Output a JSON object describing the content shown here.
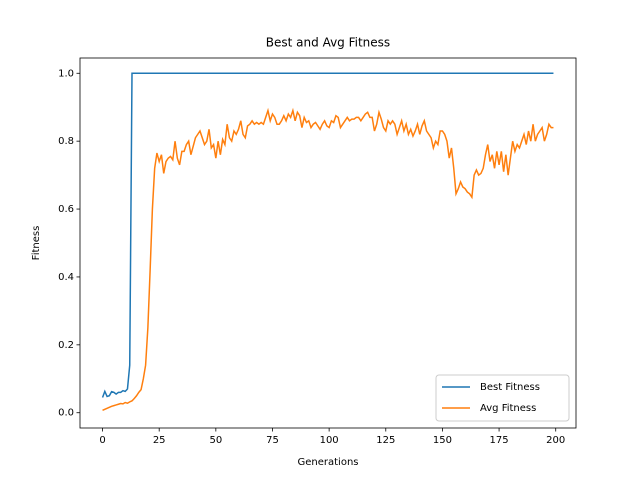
{
  "chart_data": {
    "type": "line",
    "title": "Best and Avg Fitness",
    "x_label": "Generations",
    "y_label": "Fitness",
    "x": [
      0,
      1,
      2,
      3,
      4,
      5,
      6,
      7,
      8,
      9,
      10,
      11,
      12,
      13,
      14,
      15,
      16,
      17,
      18,
      19,
      20,
      21,
      22,
      23,
      24,
      25,
      26,
      27,
      28,
      29,
      30,
      31,
      32,
      33,
      34,
      35,
      36,
      37,
      38,
      39,
      40,
      41,
      42,
      43,
      44,
      45,
      46,
      47,
      48,
      49,
      50,
      51,
      52,
      53,
      54,
      55,
      56,
      57,
      58,
      59,
      60,
      61,
      62,
      63,
      64,
      65,
      66,
      67,
      68,
      69,
      70,
      71,
      72,
      73,
      74,
      75,
      76,
      77,
      78,
      79,
      80,
      81,
      82,
      83,
      84,
      85,
      86,
      87,
      88,
      89,
      90,
      91,
      92,
      93,
      94,
      95,
      96,
      97,
      98,
      99,
      100,
      101,
      102,
      103,
      104,
      105,
      106,
      107,
      108,
      109,
      110,
      111,
      112,
      113,
      114,
      115,
      116,
      117,
      118,
      119,
      120,
      121,
      122,
      123,
      124,
      125,
      126,
      127,
      128,
      129,
      130,
      131,
      132,
      133,
      134,
      135,
      136,
      137,
      138,
      139,
      140,
      141,
      142,
      143,
      144,
      145,
      146,
      147,
      148,
      149,
      150,
      151,
      152,
      153,
      154,
      155,
      156,
      157,
      158,
      159,
      160,
      161,
      162,
      163,
      164,
      165,
      166,
      167,
      168,
      169,
      170,
      171,
      172,
      173,
      174,
      175,
      176,
      177,
      178,
      179,
      180,
      181,
      182,
      183,
      184,
      185,
      186,
      187,
      188,
      189,
      190,
      191,
      192,
      193,
      194,
      195,
      196,
      197,
      198,
      199
    ],
    "series": [
      {
        "name": "Best Fitness",
        "color": "#1f77b4",
        "values": [
          0.045,
          0.063,
          0.048,
          0.05,
          0.062,
          0.06,
          0.055,
          0.06,
          0.06,
          0.065,
          0.063,
          0.07,
          0.14,
          1,
          1,
          1,
          1,
          1,
          1,
          1,
          1,
          1,
          1,
          1,
          1,
          1,
          1,
          1,
          1,
          1,
          1,
          1,
          1,
          1,
          1,
          1,
          1,
          1,
          1,
          1,
          1,
          1,
          1,
          1,
          1,
          1,
          1,
          1,
          1,
          1,
          1,
          1,
          1,
          1,
          1,
          1,
          1,
          1,
          1,
          1,
          1,
          1,
          1,
          1,
          1,
          1,
          1,
          1,
          1,
          1,
          1,
          1,
          1,
          1,
          1,
          1,
          1,
          1,
          1,
          1,
          1,
          1,
          1,
          1,
          1,
          1,
          1,
          1,
          1,
          1,
          1,
          1,
          1,
          1,
          1,
          1,
          1,
          1,
          1,
          1,
          1,
          1,
          1,
          1,
          1,
          1,
          1,
          1,
          1,
          1,
          1,
          1,
          1,
          1,
          1,
          1,
          1,
          1,
          1,
          1,
          1,
          1,
          1,
          1,
          1,
          1,
          1,
          1,
          1,
          1,
          1,
          1,
          1,
          1,
          1,
          1,
          1,
          1,
          1,
          1,
          1,
          1,
          1,
          1,
          1,
          1,
          1,
          1,
          1,
          1,
          1,
          1,
          1,
          1,
          1,
          1,
          1,
          1,
          1,
          1,
          1,
          1,
          1,
          1,
          1,
          1,
          1,
          1,
          1,
          1,
          1,
          1,
          1,
          1,
          1,
          1,
          1,
          1,
          1,
          1,
          1,
          1,
          1,
          1,
          1,
          1,
          1,
          1,
          1,
          1,
          1,
          1,
          1,
          1,
          1,
          1,
          1,
          1,
          1,
          1
        ]
      },
      {
        "name": "Avg Fitness",
        "color": "#ff7f0e",
        "values": [
          0.007,
          0.01,
          0.013,
          0.016,
          0.019,
          0.021,
          0.023,
          0.025,
          0.027,
          0.026,
          0.03,
          0.028,
          0.032,
          0.035,
          0.042,
          0.05,
          0.06,
          0.068,
          0.1,
          0.14,
          0.25,
          0.42,
          0.6,
          0.72,
          0.765,
          0.74,
          0.76,
          0.705,
          0.74,
          0.75,
          0.755,
          0.745,
          0.8,
          0.75,
          0.73,
          0.77,
          0.77,
          0.79,
          0.8,
          0.76,
          0.785,
          0.81,
          0.82,
          0.83,
          0.81,
          0.79,
          0.8,
          0.835,
          0.78,
          0.79,
          0.75,
          0.8,
          0.76,
          0.805,
          0.79,
          0.85,
          0.81,
          0.8,
          0.83,
          0.82,
          0.835,
          0.86,
          0.82,
          0.81,
          0.845,
          0.85,
          0.86,
          0.85,
          0.855,
          0.85,
          0.855,
          0.85,
          0.87,
          0.89,
          0.86,
          0.88,
          0.87,
          0.85,
          0.85,
          0.86,
          0.875,
          0.86,
          0.88,
          0.87,
          0.89,
          0.86,
          0.885,
          0.875,
          0.84,
          0.87,
          0.855,
          0.86,
          0.84,
          0.85,
          0.855,
          0.845,
          0.835,
          0.85,
          0.86,
          0.845,
          0.84,
          0.86,
          0.855,
          0.875,
          0.87,
          0.84,
          0.85,
          0.86,
          0.87,
          0.86,
          0.865,
          0.865,
          0.87,
          0.87,
          0.86,
          0.87,
          0.88,
          0.885,
          0.87,
          0.87,
          0.83,
          0.85,
          0.885,
          0.865,
          0.84,
          0.83,
          0.86,
          0.85,
          0.86,
          0.85,
          0.82,
          0.84,
          0.86,
          0.83,
          0.85,
          0.82,
          0.835,
          0.815,
          0.83,
          0.85,
          0.82,
          0.845,
          0.86,
          0.83,
          0.82,
          0.81,
          0.78,
          0.8,
          0.79,
          0.83,
          0.83,
          0.82,
          0.8,
          0.75,
          0.78,
          0.72,
          0.645,
          0.66,
          0.68,
          0.665,
          0.66,
          0.65,
          0.645,
          0.635,
          0.7,
          0.715,
          0.7,
          0.705,
          0.72,
          0.76,
          0.79,
          0.74,
          0.76,
          0.72,
          0.77,
          0.73,
          0.77,
          0.71,
          0.76,
          0.7,
          0.75,
          0.8,
          0.77,
          0.79,
          0.78,
          0.8,
          0.82,
          0.79,
          0.83,
          0.8,
          0.85,
          0.8,
          0.82,
          0.83,
          0.84,
          0.8,
          0.82,
          0.85,
          0.84,
          0.84
        ]
      }
    ],
    "xlim": [
      -9.95,
      208.95
    ],
    "xticks": [
      0,
      25,
      50,
      75,
      100,
      125,
      150,
      175,
      200
    ],
    "ylim": [
      -0.045,
      1.045
    ],
    "yticks": [
      {
        "value": 0,
        "label": "0.0"
      },
      0.2,
      0.4,
      0.6,
      0.8,
      {
        "value": 1,
        "label": "1.0"
      }
    ],
    "legend": "lower right"
  }
}
